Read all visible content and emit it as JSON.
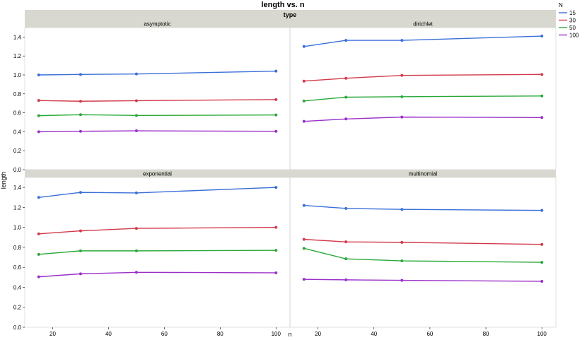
{
  "chart_data": {
    "type": "line",
    "title": "length vs. n",
    "facet_label": "type",
    "xlabel": "n",
    "ylabel": "length",
    "xlim": [
      10,
      105
    ],
    "ylim": [
      0,
      1.5
    ],
    "xticks": [
      20,
      40,
      60,
      80,
      100
    ],
    "yticks": [
      0.0,
      0.2,
      0.4,
      0.6,
      0.8,
      1.0,
      1.2,
      1.4
    ],
    "legend": {
      "title": "N",
      "position": "top-right",
      "entries": [
        {
          "name": "15",
          "color": "#3a6fd8"
        },
        {
          "name": "30",
          "color": "#d23a4a"
        },
        {
          "name": "50",
          "color": "#2aa83a"
        },
        {
          "name": "100",
          "color": "#9a30c8"
        }
      ]
    },
    "x": [
      15,
      30,
      50,
      100
    ],
    "panels": [
      {
        "label": "asymptotic",
        "series": [
          {
            "name": "15",
            "values": [
              1.0,
              1.005,
              1.01,
              1.04
            ]
          },
          {
            "name": "30",
            "values": [
              0.73,
              0.722,
              0.728,
              0.74
            ]
          },
          {
            "name": "50",
            "values": [
              0.57,
              0.58,
              0.572,
              0.577
            ]
          },
          {
            "name": "100",
            "values": [
              0.4,
              0.405,
              0.41,
              0.405
            ]
          }
        ]
      },
      {
        "label": "dirichlet",
        "series": [
          {
            "name": "15",
            "values": [
              1.3,
              1.365,
              1.365,
              1.41
            ]
          },
          {
            "name": "30",
            "values": [
              0.935,
              0.965,
              0.995,
              1.005
            ]
          },
          {
            "name": "50",
            "values": [
              0.725,
              0.765,
              0.77,
              0.778
            ]
          },
          {
            "name": "100",
            "values": [
              0.51,
              0.535,
              0.555,
              0.55
            ]
          }
        ]
      },
      {
        "label": "exponential",
        "series": [
          {
            "name": "15",
            "values": [
              1.3,
              1.35,
              1.345,
              1.4
            ]
          },
          {
            "name": "30",
            "values": [
              0.935,
              0.965,
              0.99,
              1.0
            ]
          },
          {
            "name": "50",
            "values": [
              0.73,
              0.765,
              0.765,
              0.77
            ]
          },
          {
            "name": "100",
            "values": [
              0.505,
              0.535,
              0.55,
              0.545
            ]
          }
        ]
      },
      {
        "label": "multinomial",
        "series": [
          {
            "name": "15",
            "values": [
              1.22,
              1.19,
              1.18,
              1.17
            ]
          },
          {
            "name": "30",
            "values": [
              0.88,
              0.855,
              0.85,
              0.83
            ]
          },
          {
            "name": "50",
            "values": [
              0.79,
              0.685,
              0.665,
              0.65
            ]
          },
          {
            "name": "100",
            "values": [
              0.48,
              0.475,
              0.47,
              0.46
            ]
          }
        ]
      }
    ],
    "grid": false,
    "style": {
      "strip_bg": "#d8d8d0",
      "panel_border": "#cccccc"
    }
  }
}
